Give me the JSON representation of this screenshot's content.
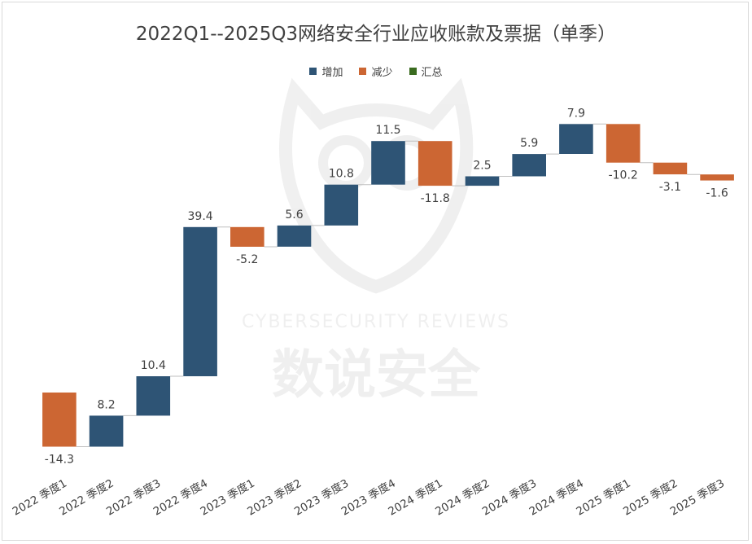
{
  "chart_data": {
    "type": "waterfall",
    "title": "2022Q1--2025Q3网络安全行业应收账款及票据（单季）",
    "legend": [
      {
        "label": "增加",
        "color": "#2e5475"
      },
      {
        "label": "减少",
        "color": "#cc6633"
      },
      {
        "label": "汇总",
        "color": "#3a6b1f"
      }
    ],
    "categories": [
      "2022 季度1",
      "2022 季度2",
      "2022 季度3",
      "2022 季度4",
      "2023 季度1",
      "2023 季度2",
      "2023 季度3",
      "2023 季度4",
      "2024 季度1",
      "2024 季度2",
      "2024 季度3",
      "2024 季度4",
      "2025 季度1",
      "2025 季度2",
      "2025 季度3"
    ],
    "values": [
      -14.3,
      8.2,
      10.4,
      39.4,
      -5.2,
      5.6,
      10.8,
      11.5,
      -11.8,
      2.5,
      5.9,
      7.9,
      -10.2,
      -3.1,
      -1.6
    ],
    "data_labels": [
      "-14.3",
      "8.2",
      "10.4",
      "39.4",
      "-5.2",
      "5.6",
      "10.8",
      "11.5",
      "-11.8",
      "2.5",
      "5.9",
      "7.9",
      "-10.2",
      "-3.1",
      "-1.6"
    ],
    "colors": {
      "increase": "#2e5475",
      "decrease": "#cc6633",
      "total": "#3a6b1f",
      "connector": "#bfbfbf"
    }
  },
  "watermark": {
    "line1": "CYBERSECURITY  REVIEWS",
    "line2": "数说安全"
  }
}
